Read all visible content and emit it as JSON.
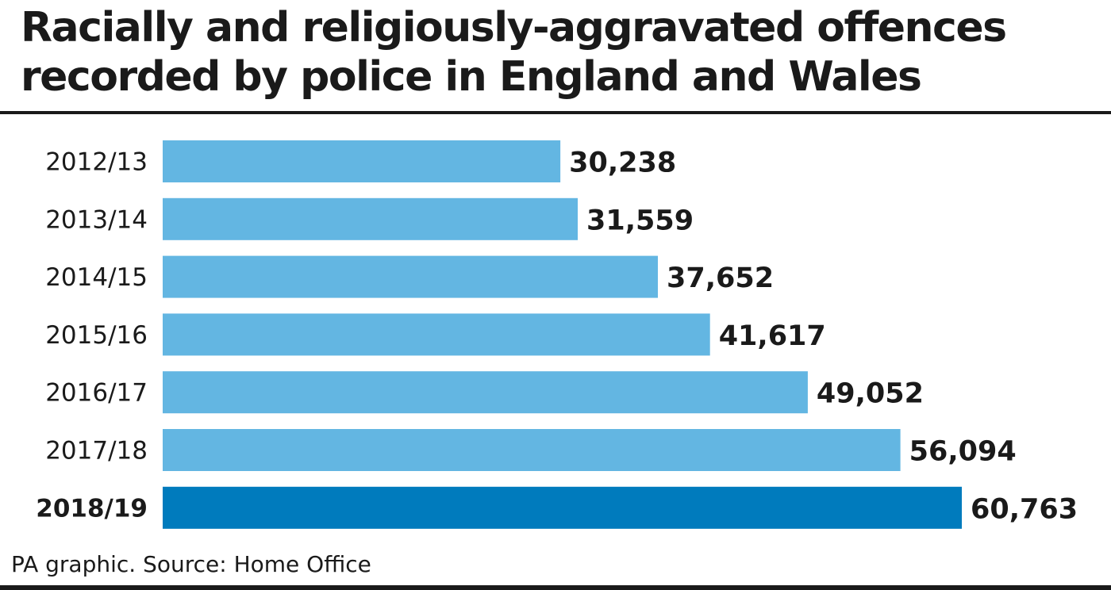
{
  "title": "Racially and religiously-aggravated offences recorded by police in England and Wales",
  "source": "PA graphic. Source: Home Office",
  "colors": {
    "bar": "#63b6e2",
    "highlight_bar": "#007bbd",
    "text": "#1a1a1a"
  },
  "chart_data": {
    "type": "bar",
    "orientation": "horizontal",
    "categories": [
      "2012/13",
      "2013/14",
      "2014/15",
      "2015/16",
      "2016/17",
      "2017/18",
      "2018/19"
    ],
    "values": [
      30238,
      31559,
      37652,
      41617,
      49052,
      56094,
      60763
    ],
    "value_labels": [
      "30,238",
      "31,559",
      "37,652",
      "41,617",
      "49,052",
      "56,094",
      "60,763"
    ],
    "highlight": "2018/19",
    "xlim": [
      0,
      60763
    ],
    "grid": false,
    "legend": "none"
  }
}
